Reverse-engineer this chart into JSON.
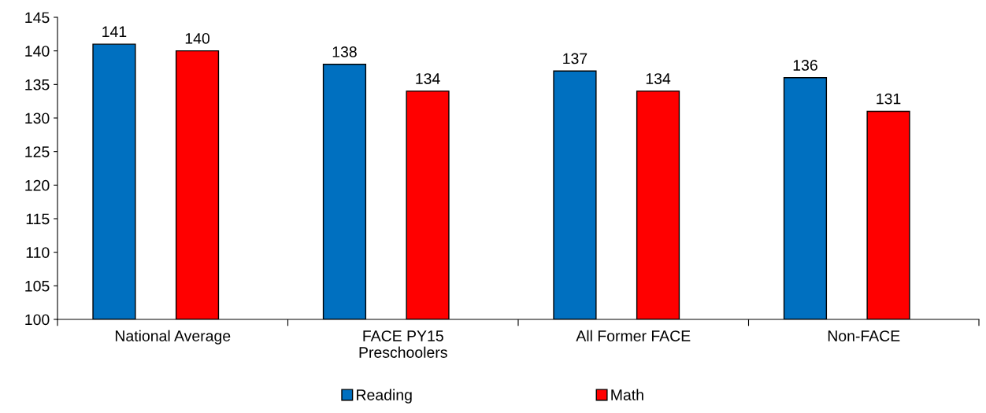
{
  "chart_data": {
    "type": "bar",
    "categories": [
      "National Average",
      "FACE PY15\nPreschoolers",
      "All Former FACE",
      "Non-FACE"
    ],
    "series": [
      {
        "name": "Reading",
        "color": "#0070c0",
        "values": [
          141,
          138,
          137,
          136
        ]
      },
      {
        "name": "Math",
        "color": "#ff0000",
        "values": [
          140,
          134,
          134,
          131
        ]
      }
    ],
    "ylim": [
      100,
      145
    ],
    "yticks": [
      100,
      105,
      110,
      115,
      120,
      125,
      130,
      135,
      140,
      145
    ],
    "data_labels": true,
    "legend": "bottom",
    "grid": false
  }
}
